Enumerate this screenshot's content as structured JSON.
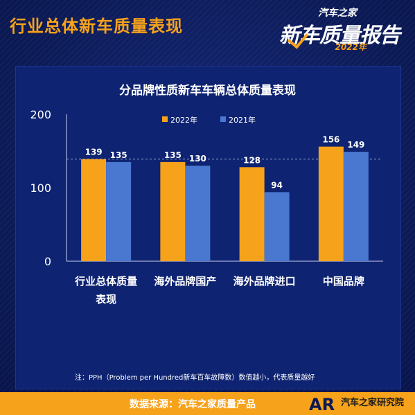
{
  "header": {
    "title": "行业总体新车质量表现"
  },
  "brand": {
    "line1": "汽车之家",
    "line2": "新车质量报告",
    "line3": "2022年"
  },
  "chart_data": {
    "type": "bar",
    "title": "分品牌性质新车车辆总体质量表现",
    "categories": [
      "行业总体质量表现",
      "海外品牌国产",
      "海外品牌进口",
      "中国品牌"
    ],
    "series": [
      {
        "name": "2022年",
        "values": [
          139,
          135,
          128,
          156
        ],
        "color": "#f7a21b"
      },
      {
        "name": "2021年",
        "values": [
          135,
          130,
          94,
          149
        ],
        "color": "#4a77d0"
      }
    ],
    "ylim": [
      0,
      200
    ],
    "yticks": [
      0,
      100,
      200
    ],
    "reference_line": 139,
    "legend_position": "top-left",
    "grid": false
  },
  "footnote": "注：PPH（Problem per Hundred新车百车故障数）数值越小，代表质量越好",
  "footer": {
    "source": "数据来源：汽车之家质量产品",
    "org": "汽车之家研究院",
    "logo": "AR"
  },
  "colors": {
    "accent": "#f7a21b",
    "background": "#0b1a56",
    "bar2021": "#4a77d0"
  }
}
